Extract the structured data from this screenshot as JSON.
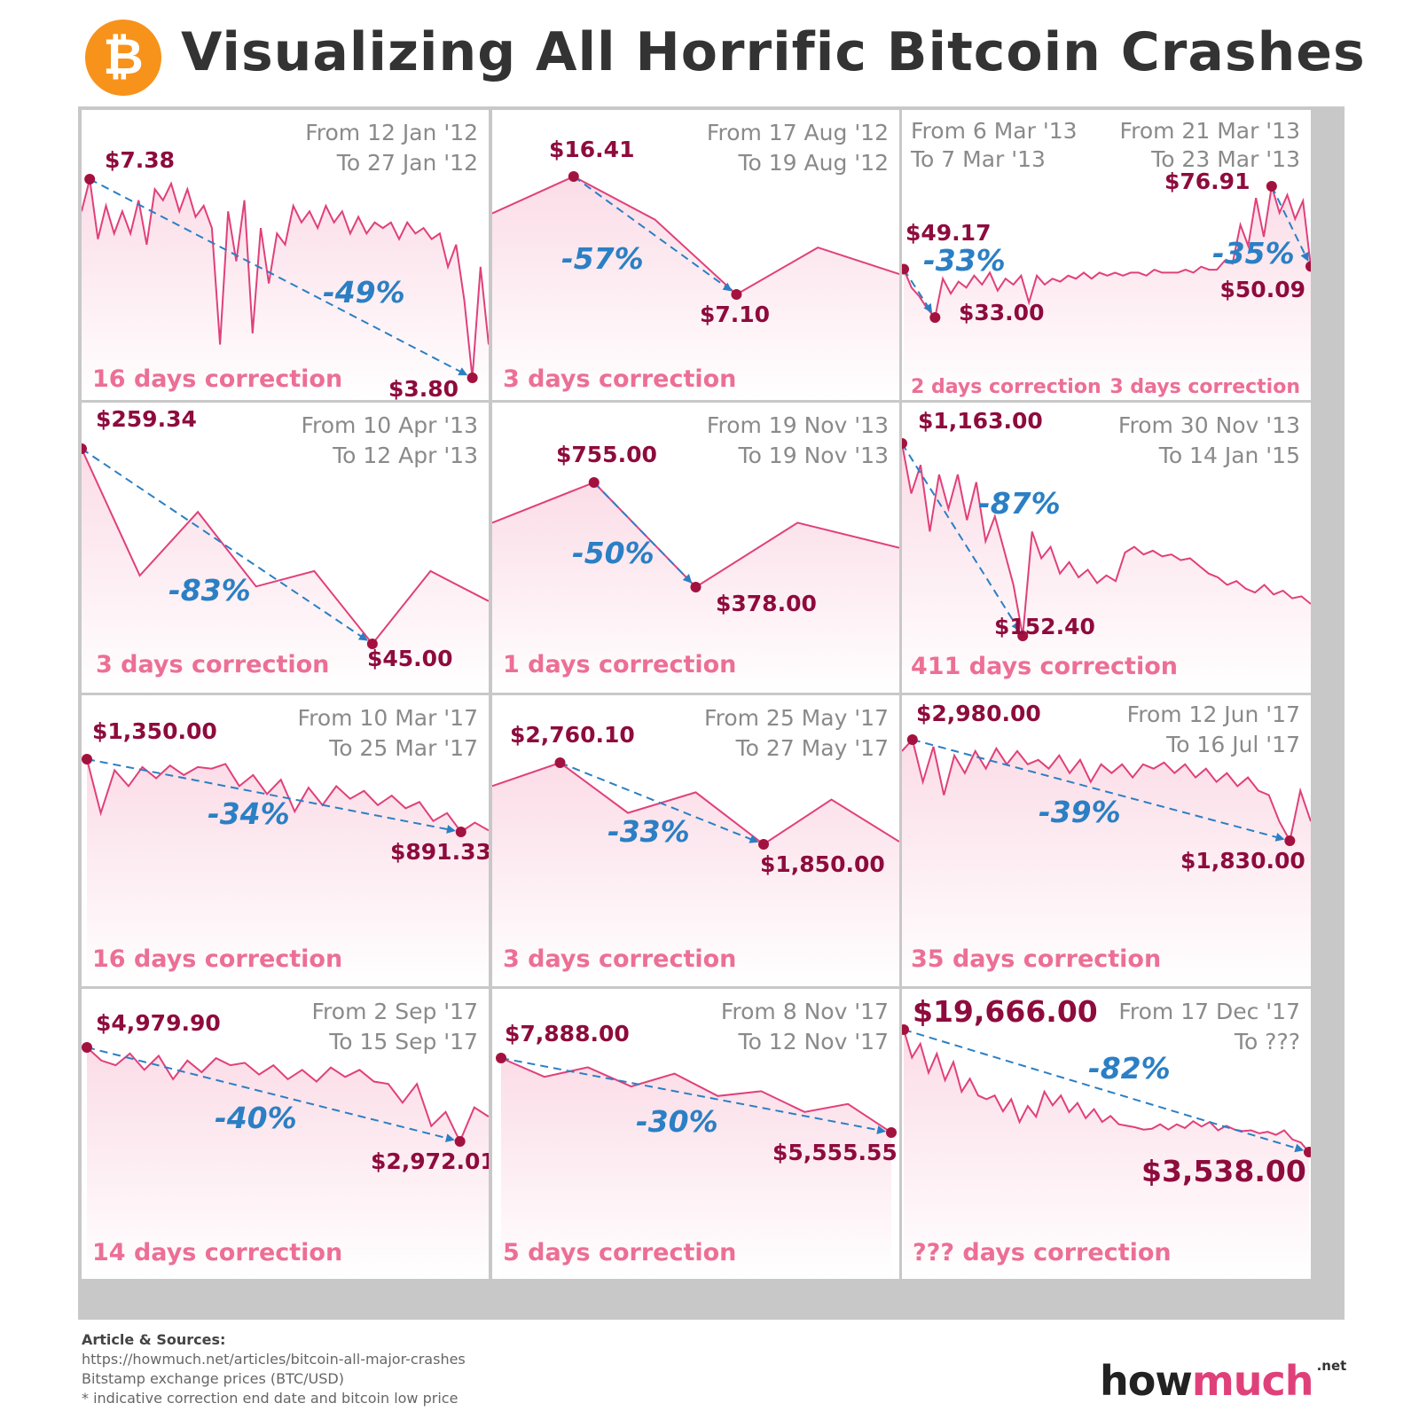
{
  "header": {
    "logo_symbol": "₿",
    "logo_icon": "bitcoin-icon",
    "title": "Visualizing All Horrific Bitcoin Crashes"
  },
  "colors": {
    "line": "#e0407a",
    "fill": "#fbdce7",
    "arrow": "#2b7fc4",
    "dot": "#a3123f",
    "price_text": "#8e0b3d",
    "date_text": "#8a8a8a",
    "correction_text": "#ec6f95",
    "grid_border": "#c8c8c8"
  },
  "chart_data": [
    {
      "type": "line",
      "from": "From 12 Jan '12",
      "to": "To 27 Jan '12",
      "start_price": "$7.38",
      "end_price": "$3.80",
      "change": "-49%",
      "correction": "16 days correction",
      "y": [
        6.8,
        7.38,
        6.3,
        6.9,
        6.4,
        6.8,
        6.4,
        7.0,
        6.2,
        7.2,
        7.0,
        7.3,
        6.8,
        7.2,
        6.7,
        6.9,
        6.5,
        4.4,
        6.8,
        5.9,
        7.0,
        4.6,
        6.5,
        5.5,
        6.4,
        6.2,
        6.9,
        6.6,
        6.8,
        6.5,
        6.9,
        6.6,
        6.8,
        6.4,
        6.7,
        6.4,
        6.6,
        6.5,
        6.6,
        6.3,
        6.6,
        6.4,
        6.5,
        6.3,
        6.4,
        5.8,
        6.2,
        5.2,
        3.8,
        5.8,
        4.4
      ]
    },
    {
      "type": "line",
      "from": "From 17 Aug '12",
      "to": "To 19 Aug '12",
      "start_price": "$16.41",
      "end_price": "$7.10",
      "change": "-57%",
      "correction": "3 days correction",
      "y": [
        13.5,
        16.41,
        13.0,
        7.1,
        10.8,
        8.7
      ]
    },
    {
      "type": "line",
      "from_a": "From 6 Mar '13",
      "to_a": "To 7 Mar '13",
      "from_b": "From 21 Mar '13",
      "to_b": "To 23 Mar '13",
      "start_price_a": "$49.17",
      "end_price_a": "$33.00",
      "change_a": "-33%",
      "correction_a": "2 days correction",
      "start_price_b": "$76.91",
      "end_price_b": "$50.09",
      "change_b": "-35%",
      "correction_b": "3 days correction",
      "y": [
        49.17,
        43,
        40,
        36,
        33,
        46,
        41,
        45,
        43,
        47,
        44,
        48,
        42,
        46,
        44,
        47,
        38,
        47,
        44,
        46,
        45,
        47,
        46,
        48,
        46,
        48,
        47,
        48,
        47,
        48,
        48,
        47,
        49,
        48,
        48,
        48,
        49,
        48,
        50,
        49,
        49,
        52,
        51,
        64,
        57,
        73,
        60,
        76.91,
        68,
        74,
        66,
        72,
        50.09
      ]
    },
    {
      "type": "line",
      "from": "From 10 Apr '13",
      "to": "To 12 Apr '13",
      "start_price": "$259.34",
      "end_price": "$45.00",
      "change": "-83%",
      "correction": "3 days correction",
      "y": [
        259.34,
        120,
        190,
        108,
        125,
        45,
        125,
        92
      ]
    },
    {
      "type": "line",
      "from": "From 19 Nov '13",
      "to": "To 19 Nov '13",
      "start_price": "$755.00",
      "end_price": "$378.00",
      "change": "-50%",
      "correction": "1 days correction",
      "y": [
        610,
        755,
        378,
        610,
        520
      ]
    },
    {
      "type": "line",
      "from": "From 30 Nov '13",
      "to": "To 14 Jan '15",
      "start_price": "$1,163.00",
      "end_price": "$152.40",
      "change": "-87%",
      "correction": "411 days correction",
      "y": [
        1163,
        900,
        1050,
        700,
        1000,
        820,
        1000,
        760,
        960,
        650,
        780,
        600,
        420,
        152.4,
        700,
        560,
        620,
        480,
        540,
        460,
        500,
        430,
        470,
        440,
        590,
        620,
        580,
        600,
        570,
        580,
        550,
        560,
        520,
        480,
        460,
        420,
        440,
        400,
        380,
        420,
        370,
        390,
        350,
        360,
        320
      ]
    },
    {
      "type": "line",
      "from": "From 10 Mar '17",
      "to": "To 25 Mar '17",
      "start_price": "$1,350.00",
      "end_price": "$891.33",
      "change": "-34%",
      "correction": "16 days correction",
      "y": [
        1350,
        1010,
        1280,
        1180,
        1300,
        1230,
        1310,
        1250,
        1300,
        1290,
        1320,
        1180,
        1250,
        1130,
        1220,
        1020,
        1170,
        1060,
        1180,
        1100,
        1150,
        1060,
        1120,
        1040,
        1080,
        960,
        1010,
        891.33,
        950,
        900
      ]
    },
    {
      "type": "line",
      "from": "From 25 May '17",
      "to": "To 27 May '17",
      "start_price": "$2,760.10",
      "end_price": "$1,850.00",
      "change": "-33%",
      "correction": "3 days correction",
      "y": [
        2500,
        2760.1,
        2200,
        2430,
        1850,
        2350,
        1880
      ]
    },
    {
      "type": "line",
      "from": "From 12 Jun '17",
      "to": "To 16 Jul '17",
      "start_price": "$2,980.00",
      "end_price": "$1,830.00",
      "change": "-39%",
      "correction": "35 days correction",
      "y": [
        2850,
        2980,
        2500,
        2900,
        2350,
        2800,
        2600,
        2850,
        2650,
        2880,
        2700,
        2850,
        2700,
        2750,
        2650,
        2800,
        2600,
        2750,
        2500,
        2700,
        2600,
        2700,
        2550,
        2700,
        2650,
        2720,
        2600,
        2700,
        2550,
        2650,
        2500,
        2600,
        2450,
        2550,
        2400,
        2350,
        2050,
        1830,
        2400,
        2050
      ]
    },
    {
      "type": "line",
      "from": "From 2 Sep '17",
      "to": "To 15 Sep '17",
      "start_price": "$4,979.90",
      "end_price": "$2,972.01",
      "change": "-40%",
      "correction": "14 days correction",
      "y": [
        4979.9,
        4700,
        4600,
        4850,
        4500,
        4800,
        4300,
        4700,
        4450,
        4750,
        4600,
        4650,
        4400,
        4600,
        4300,
        4500,
        4250,
        4550,
        4350,
        4500,
        4250,
        4200,
        3800,
        4200,
        3300,
        3600,
        2972.01,
        3700,
        3500
      ]
    },
    {
      "type": "line",
      "from": "From 8 Nov '17",
      "to": "To 12 Nov '17",
      "start_price": "$7,888.00",
      "end_price": "$5,555.55",
      "change": "-30%",
      "correction": "5 days correction",
      "y": [
        7888,
        7300,
        7600,
        7000,
        7400,
        6700,
        6850,
        6200,
        6450,
        5555.55
      ]
    },
    {
      "type": "line",
      "from": "From 17 Dec '17",
      "to": "To ???",
      "start_price": "$19,666.00",
      "end_price": "$3,538.00",
      "change": "-82%",
      "correction": "??? days correction",
      "y": [
        19666,
        16000,
        17800,
        14000,
        16500,
        13000,
        15400,
        11500,
        13200,
        11000,
        10500,
        11000,
        8900,
        10500,
        7500,
        9600,
        8200,
        11500,
        9700,
        11000,
        8800,
        10000,
        8000,
        9200,
        7500,
        8300,
        7200,
        7000,
        6800,
        6500,
        6600,
        7200,
        6500,
        7200,
        6700,
        7600,
        6900,
        7500,
        6400,
        7000,
        6500,
        6300,
        6400,
        6000,
        6200,
        5800,
        6400,
        5200,
        4800,
        3538
      ]
    }
  ],
  "footer": {
    "title": "Article & Sources:",
    "url": "https://howmuch.net/articles/bitcoin-all-major-crashes",
    "source": "Bitstamp exchange prices (BTC/USD)",
    "note": "* indicative correction end date and bitcoin low price"
  },
  "brand": {
    "how": "how",
    "much": "much",
    "net": ".net"
  }
}
